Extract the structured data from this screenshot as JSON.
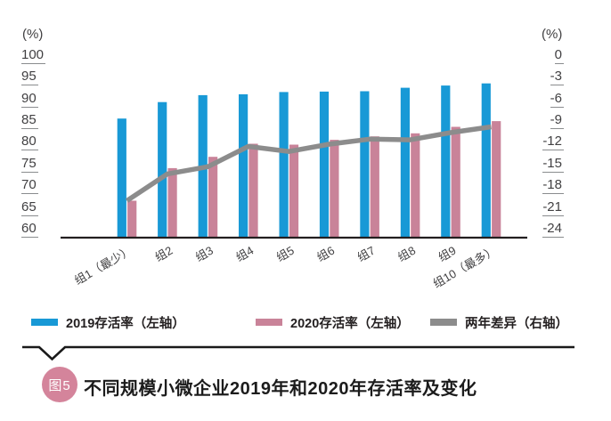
{
  "chart_data": {
    "type": "combo-bar-line",
    "title": "不同规模小微企业2019年和2020年存活率及变化",
    "figure_label": "图5",
    "categories": [
      "组1（最少）",
      "组2",
      "组3",
      "组4",
      "组5",
      "组6",
      "组7",
      "组8",
      "组9",
      "组10（最多）"
    ],
    "series": [
      {
        "name": "2019存活率（左轴）",
        "type": "bar",
        "axis": "left",
        "color": "#1899d6",
        "values": [
          87.4,
          91.2,
          92.8,
          93.0,
          93.5,
          93.6,
          93.7,
          94.5,
          95.0,
          95.5
        ]
      },
      {
        "name": "2020存活率（左轴）",
        "type": "bar",
        "axis": "left",
        "color": "#c98399",
        "values": [
          68.5,
          76.0,
          78.6,
          81.6,
          81.4,
          82.5,
          83.3,
          84.0,
          85.5,
          86.8
        ]
      },
      {
        "name": "两年差异（右轴）",
        "type": "line",
        "axis": "right",
        "color": "#8c8c8c",
        "values": [
          -18.9,
          -15.2,
          -14.2,
          -11.4,
          -12.1,
          -11.1,
          -10.4,
          -10.5,
          -9.5,
          -8.7
        ]
      }
    ],
    "left_axis": {
      "unit": "(%)",
      "min": 60,
      "max": 100,
      "ticks": [
        100,
        95,
        90,
        85,
        80,
        75,
        70,
        65,
        60
      ]
    },
    "right_axis": {
      "unit": "(%)",
      "min": -24,
      "max": 0,
      "ticks": [
        0,
        -3,
        -6,
        -9,
        -12,
        -15,
        -18,
        -21,
        -24
      ]
    },
    "grid": false,
    "legend_position": "bottom"
  },
  "caption": {
    "badge": "图5",
    "badge_color": "#d4849b",
    "title": "不同规模小微企业2019年和2020年存活率及变化"
  }
}
